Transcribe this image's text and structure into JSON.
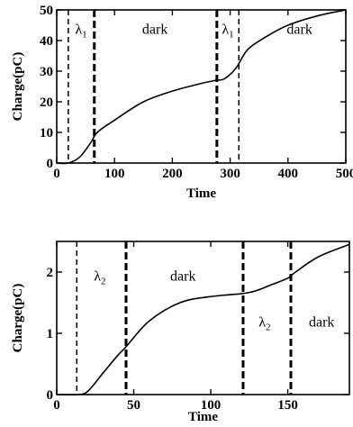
{
  "chart_data": [
    {
      "type": "line",
      "xlabel": "Time",
      "ylabel": "Charge(pC)",
      "xlim": [
        0,
        500
      ],
      "ylim": [
        0,
        50
      ],
      "xticks": [
        0,
        100,
        200,
        300,
        400,
        500
      ],
      "yticks": [
        0,
        10,
        20,
        30,
        40,
        50
      ],
      "series": [
        {
          "x": [
            0,
            20,
            40,
            60,
            70,
            100,
            150,
            200,
            250,
            275,
            290,
            310,
            330,
            360,
            400,
            450,
            500
          ],
          "y": [
            0,
            0,
            2,
            7,
            10,
            14,
            20,
            23.5,
            26,
            27,
            27.5,
            31,
            37,
            41,
            45,
            48,
            50
          ]
        }
      ],
      "vlines": [
        {
          "x": 20,
          "style": "thin-dashed"
        },
        {
          "x": 65,
          "style": "thick-dashed"
        },
        {
          "x": 277,
          "style": "thick-dashed"
        },
        {
          "x": 315,
          "style": "thin-dashed"
        }
      ],
      "annotations": [
        {
          "text": "λ",
          "sub": "1",
          "x": 42,
          "y": 44
        },
        {
          "text": "dark",
          "sub": "",
          "x": 170,
          "y": 44
        },
        {
          "text": "λ",
          "sub": "1",
          "x": 296,
          "y": 44
        },
        {
          "text": "dark",
          "sub": "",
          "x": 420,
          "y": 44
        }
      ]
    },
    {
      "type": "line",
      "xlabel": "Time",
      "ylabel": "Charge(pC)",
      "xlim": [
        0,
        190
      ],
      "ylim": [
        0,
        2.5
      ],
      "xticks": [
        0,
        50,
        100,
        150
      ],
      "yticks": [
        0,
        1,
        2
      ],
      "series": [
        {
          "x": [
            0,
            13,
            20,
            30,
            40,
            45,
            60,
            80,
            100,
            121,
            130,
            140,
            150,
            155,
            170,
            190
          ],
          "y": [
            0,
            0,
            0.05,
            0.35,
            0.65,
            0.78,
            1.2,
            1.5,
            1.6,
            1.65,
            1.7,
            1.8,
            1.9,
            2.0,
            2.25,
            2.45
          ]
        }
      ],
      "vlines": [
        {
          "x": 13,
          "style": "thin-dashed"
        },
        {
          "x": 45,
          "style": "thick-dashed"
        },
        {
          "x": 121,
          "style": "thick-dashed"
        },
        {
          "x": 152,
          "style": "thick-dashed"
        }
      ],
      "annotations": [
        {
          "text": "λ",
          "sub": "2",
          "x": 28,
          "y": 1.95
        },
        {
          "text": "dark",
          "sub": "",
          "x": 82,
          "y": 1.95
        },
        {
          "text": "λ",
          "sub": "2",
          "x": 135,
          "y": 1.2
        },
        {
          "text": "dark",
          "sub": "",
          "x": 172,
          "y": 1.2
        }
      ]
    }
  ]
}
